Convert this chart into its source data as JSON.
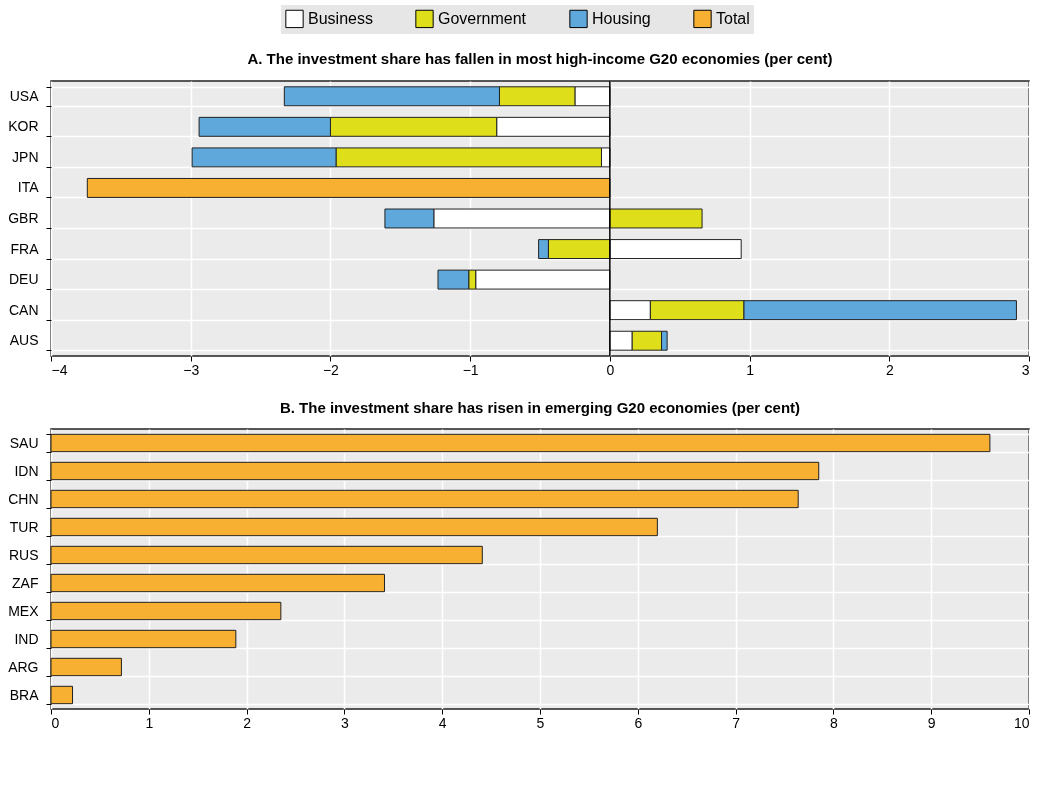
{
  "chart_data": [
    {
      "type": "bar",
      "orientation": "horizontal",
      "stacked": true,
      "title": "A. The investment share has fallen in most high-income G20 economies (per cent)",
      "categories": [
        "USA",
        "KOR",
        "JPN",
        "ITA",
        "GBR",
        "FRA",
        "DEU",
        "CAN",
        "AUS"
      ],
      "series": [
        {
          "name": "Business",
          "color": "#ffffff",
          "values": [
            -0.25,
            -0.81,
            -0.06,
            null,
            -1.26,
            0.94,
            -0.96,
            0.29,
            0.16
          ]
        },
        {
          "name": "Government",
          "color": "#dede1a",
          "values": [
            -0.54,
            -1.19,
            -1.9,
            null,
            0.66,
            -0.44,
            -0.05,
            0.67,
            0.21
          ]
        },
        {
          "name": "Housing",
          "color": "#5fa8dc",
          "values": [
            -1.54,
            -0.94,
            -1.03,
            null,
            -0.35,
            -0.07,
            -0.22,
            1.95,
            0.04
          ]
        },
        {
          "name": "Total",
          "color": "#f7b032",
          "values": [
            null,
            null,
            null,
            -3.74,
            null,
            null,
            null,
            null,
            null
          ]
        }
      ],
      "xlim": [
        -4,
        3
      ],
      "xticks": [
        -4,
        -3,
        -2,
        -1,
        0,
        1,
        2,
        3
      ],
      "grid": true,
      "legend": "top",
      "ref_lines": [
        {
          "axis": "x",
          "value": 0,
          "color": "#000000"
        }
      ]
    },
    {
      "type": "bar",
      "orientation": "horizontal",
      "title": "B. The investment share has risen in emerging G20 economies (per cent)",
      "categories": [
        "SAU",
        "IDN",
        "CHN",
        "TUR",
        "RUS",
        "ZAF",
        "MEX",
        "IND",
        "ARG",
        "BRA"
      ],
      "values": [
        9.6,
        7.85,
        7.64,
        6.2,
        4.41,
        3.41,
        2.35,
        1.89,
        0.72,
        0.22
      ],
      "color": "#f7b032",
      "xlim": [
        0,
        10
      ],
      "xticks": [
        0,
        1,
        2,
        3,
        4,
        5,
        6,
        7,
        8,
        9,
        10
      ],
      "grid": true
    }
  ]
}
